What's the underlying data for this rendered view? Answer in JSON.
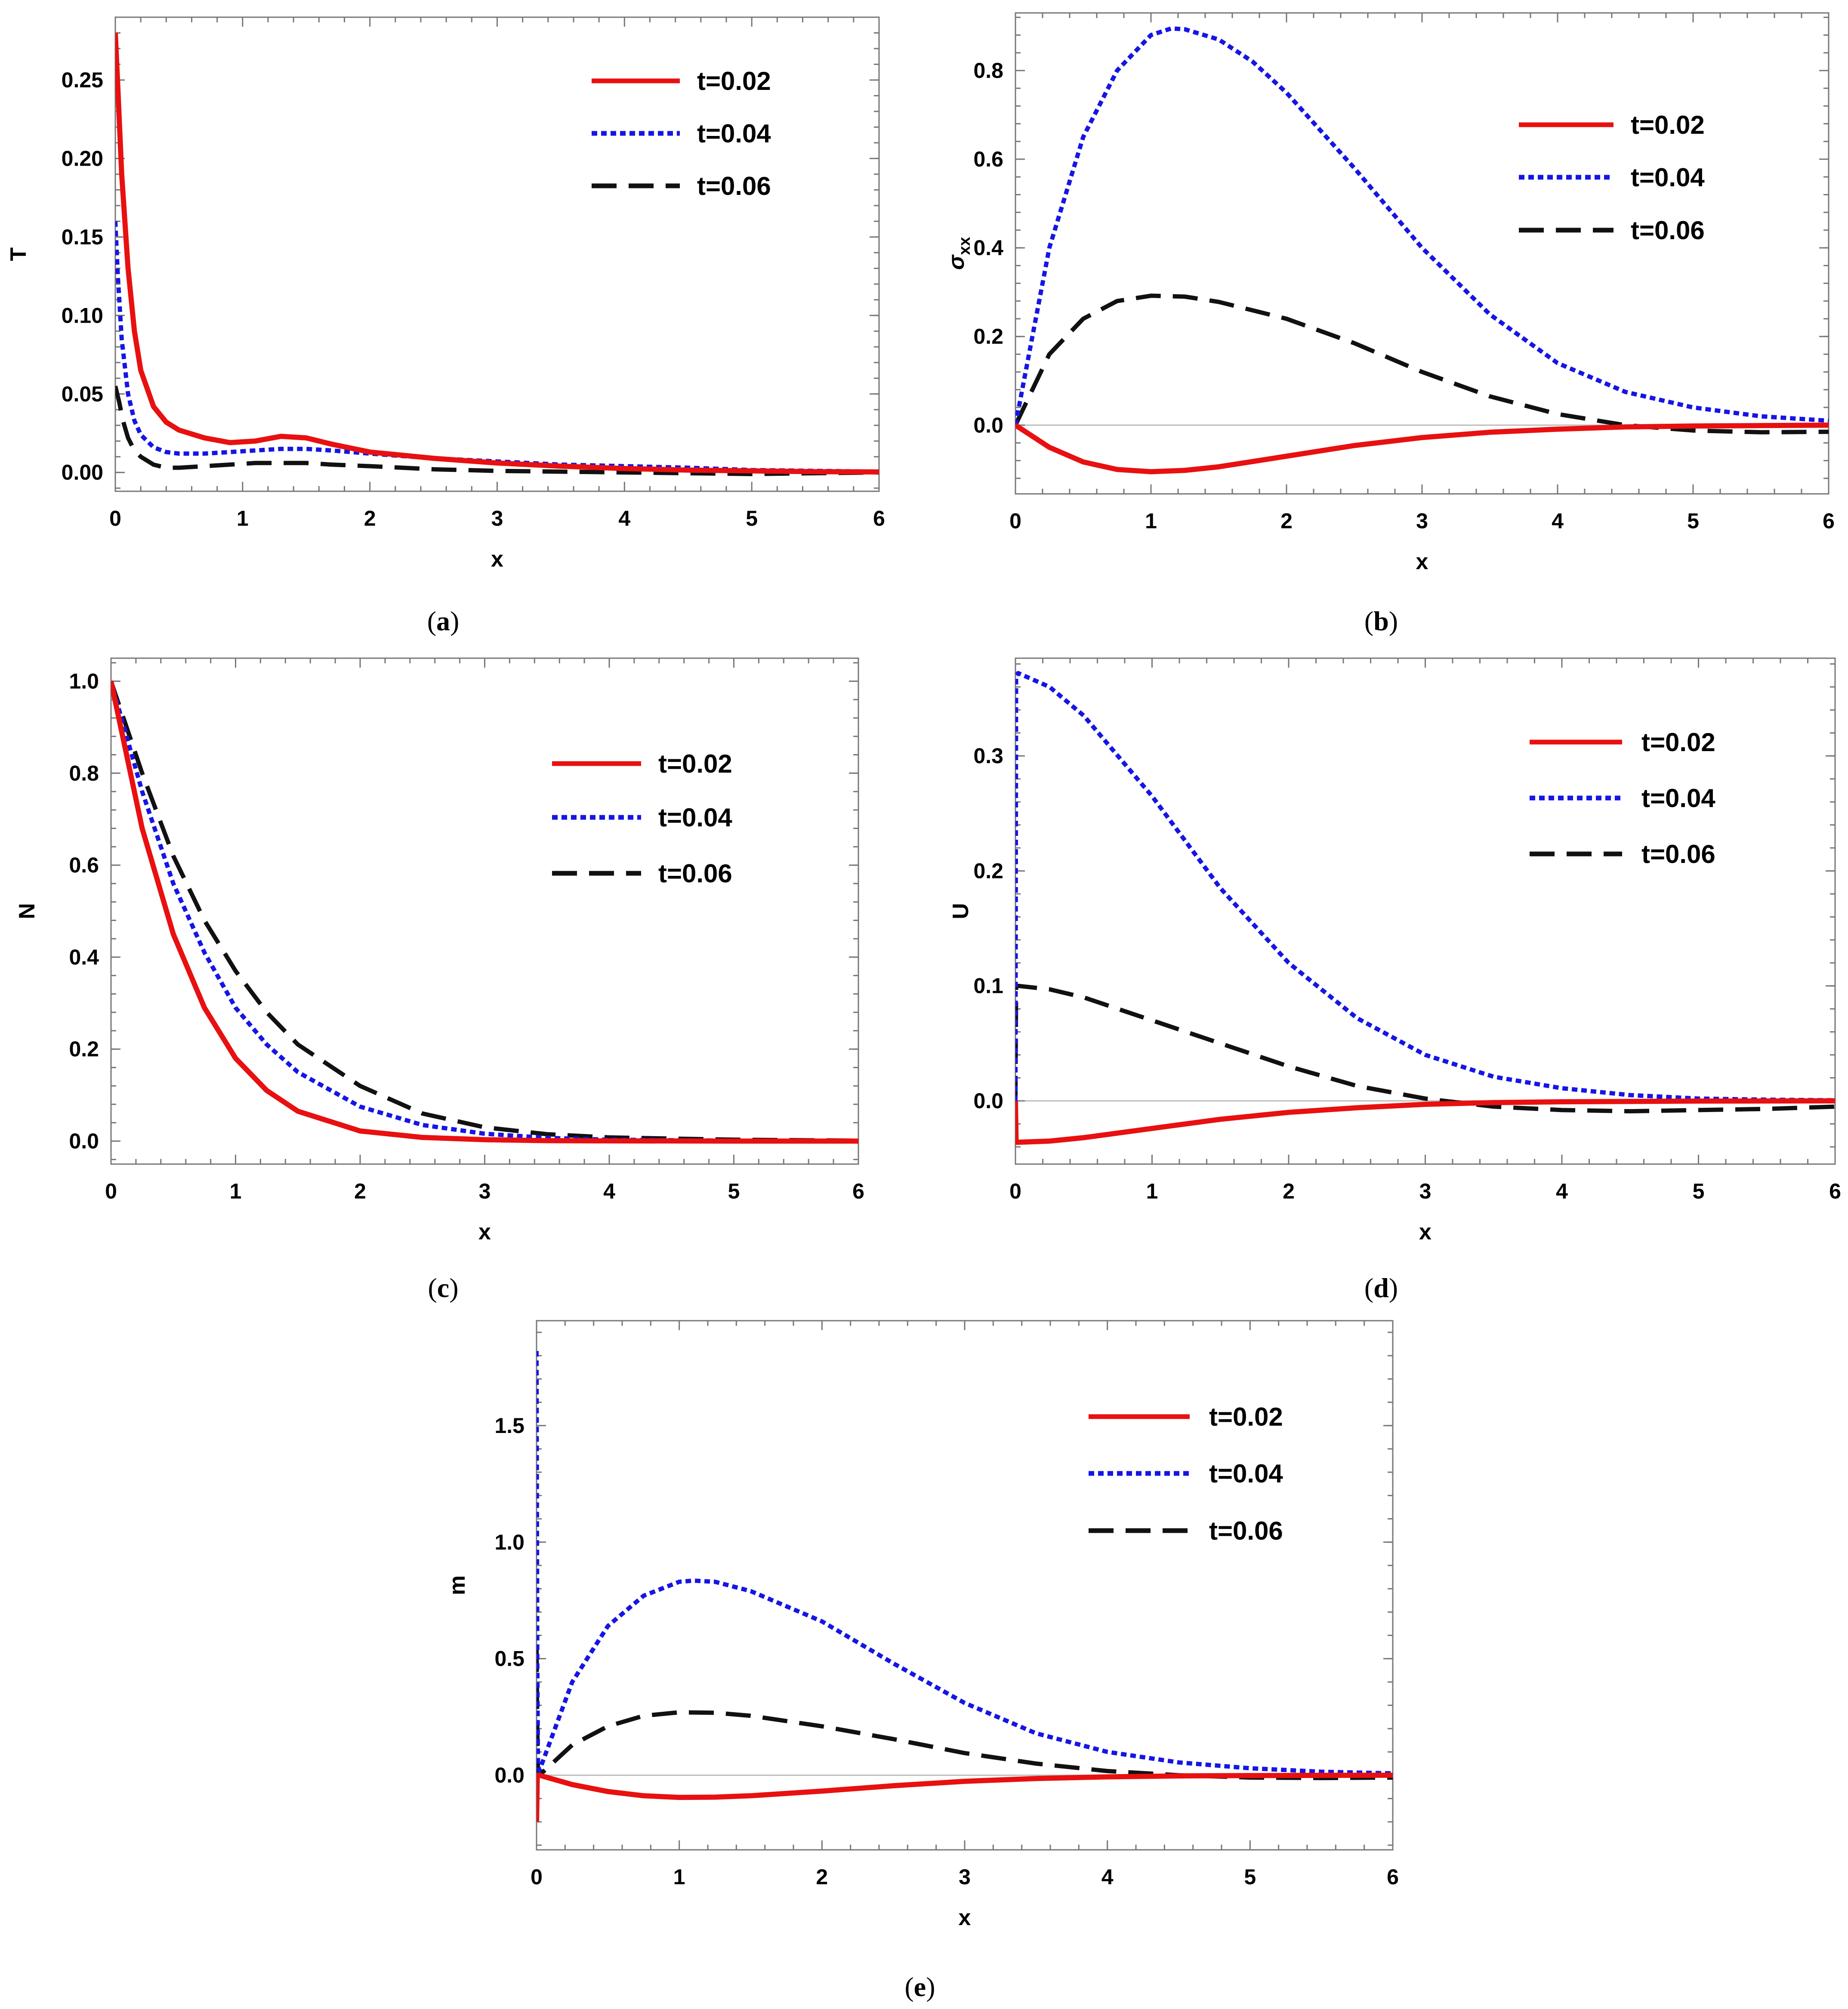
{
  "figure": {
    "legend_labels": [
      "t=0.02",
      "t=0.04",
      "t=0.06"
    ],
    "series_styles": [
      {
        "name": "t=0.02",
        "color": "#e81010",
        "dash": "solid"
      },
      {
        "name": "t=0.04",
        "color": "#1515e6",
        "dash": "dotted"
      },
      {
        "name": "t=0.06",
        "color": "#111111",
        "dash": "dashed"
      }
    ]
  },
  "chart_data": [
    {
      "id": "a",
      "caption": "a",
      "type": "line",
      "ylabel": "T",
      "xlabel": "x",
      "xlim": [
        0,
        6
      ],
      "ylim": [
        -0.012,
        0.29
      ],
      "xticks": [
        0,
        1,
        2,
        3,
        4,
        5,
        6
      ],
      "yticks": [
        "0.00",
        "0.05",
        "0.10",
        "0.15",
        "0.20",
        "0.25"
      ],
      "legend_position": "top-right",
      "zero_line": false,
      "series": [
        {
          "name": "t=0.02",
          "x": [
            0,
            0.02,
            0.05,
            0.1,
            0.15,
            0.2,
            0.3,
            0.4,
            0.5,
            0.7,
            0.9,
            1.1,
            1.3,
            1.5,
            1.7,
            2.0,
            2.5,
            3.0,
            3.5,
            4.0,
            4.5,
            5.0,
            5.5,
            6.0
          ],
          "y": [
            0.28,
            0.245,
            0.19,
            0.13,
            0.09,
            0.065,
            0.042,
            0.032,
            0.027,
            0.022,
            0.019,
            0.02,
            0.023,
            0.022,
            0.018,
            0.013,
            0.009,
            0.006,
            0.004,
            0.0025,
            0.0015,
            0.001,
            0.0005,
            0.0003
          ]
        },
        {
          "name": "t=0.04",
          "x": [
            0,
            0.02,
            0.05,
            0.1,
            0.15,
            0.2,
            0.3,
            0.4,
            0.5,
            0.7,
            0.9,
            1.1,
            1.3,
            1.5,
            1.7,
            2.0,
            2.5,
            3.0,
            3.5,
            4.0,
            4.5,
            5.0,
            5.5,
            6.0
          ],
          "y": [
            0.16,
            0.125,
            0.085,
            0.05,
            0.033,
            0.024,
            0.016,
            0.013,
            0.012,
            0.012,
            0.013,
            0.014,
            0.015,
            0.015,
            0.014,
            0.012,
            0.009,
            0.007,
            0.005,
            0.004,
            0.003,
            0.0015,
            0.001,
            0.0005
          ]
        },
        {
          "name": "t=0.06",
          "x": [
            0,
            0.03,
            0.06,
            0.1,
            0.15,
            0.2,
            0.3,
            0.4,
            0.5,
            0.7,
            0.9,
            1.1,
            1.3,
            1.5,
            1.7,
            2.0,
            2.5,
            3.0,
            3.5,
            4.0,
            4.5,
            5.0,
            5.5,
            6.0
          ],
          "y": [
            0.055,
            0.045,
            0.033,
            0.022,
            0.014,
            0.01,
            0.005,
            0.003,
            0.003,
            0.004,
            0.005,
            0.006,
            0.006,
            0.006,
            0.005,
            0.004,
            0.002,
            0.001,
            0.0005,
            0.0,
            -0.0005,
            -0.001,
            -0.0005,
            0.0
          ]
        }
      ]
    },
    {
      "id": "b",
      "caption": "b",
      "type": "line",
      "ylabel": "σxx",
      "ylabel_main": "σ",
      "ylabel_sub": "xx",
      "xlabel": "x",
      "xlim": [
        0,
        6
      ],
      "ylim": [
        -0.155,
        0.93
      ],
      "xticks": [
        0,
        1,
        2,
        3,
        4,
        5,
        6
      ],
      "yticks": [
        "0.0",
        "0.2",
        "0.4",
        "0.6",
        "0.8"
      ],
      "legend_position": "top-right",
      "zero_line": true,
      "series": [
        {
          "name": "t=0.02",
          "x": [
            0,
            0.25,
            0.5,
            0.75,
            1.0,
            1.25,
            1.5,
            1.75,
            2.0,
            2.5,
            3.0,
            3.5,
            4.0,
            4.5,
            5.0,
            5.5,
            6.0
          ],
          "y": [
            0,
            -0.05,
            -0.083,
            -0.1,
            -0.105,
            -0.102,
            -0.094,
            -0.082,
            -0.07,
            -0.046,
            -0.028,
            -0.016,
            -0.009,
            -0.004,
            -0.002,
            -0.001,
            0
          ]
        },
        {
          "name": "t=0.04",
          "x": [
            0,
            0.25,
            0.5,
            0.75,
            1.0,
            1.15,
            1.25,
            1.5,
            1.75,
            2.0,
            2.5,
            3.0,
            3.5,
            4.0,
            4.5,
            5.0,
            5.5,
            6.0
          ],
          "y": [
            0,
            0.4,
            0.65,
            0.8,
            0.88,
            0.895,
            0.893,
            0.87,
            0.82,
            0.75,
            0.58,
            0.4,
            0.25,
            0.14,
            0.075,
            0.04,
            0.02,
            0.01
          ]
        },
        {
          "name": "t=0.06",
          "x": [
            0,
            0.25,
            0.5,
            0.75,
            1.0,
            1.25,
            1.5,
            2.0,
            2.5,
            3.0,
            3.5,
            4.0,
            4.5,
            5.0,
            5.5,
            6.0
          ],
          "y": [
            0,
            0.16,
            0.24,
            0.28,
            0.292,
            0.29,
            0.278,
            0.24,
            0.185,
            0.12,
            0.065,
            0.025,
            0.0,
            -0.012,
            -0.016,
            -0.015
          ]
        }
      ]
    },
    {
      "id": "c",
      "caption": "c",
      "type": "line",
      "ylabel": "N",
      "xlabel": "x",
      "xlim": [
        0,
        6
      ],
      "ylim": [
        -0.05,
        1.05
      ],
      "xticks": [
        0,
        1,
        2,
        3,
        4,
        5,
        6
      ],
      "yticks": [
        "0.0",
        "0.2",
        "0.4",
        "0.6",
        "0.8",
        "1.0"
      ],
      "legend_position": "top-right",
      "zero_line": false,
      "series": [
        {
          "name": "t=0.02",
          "x": [
            0,
            0.25,
            0.5,
            0.75,
            1.0,
            1.25,
            1.5,
            2.0,
            2.5,
            3.0,
            3.5,
            4.0,
            5.0,
            6.0
          ],
          "y": [
            1.0,
            0.68,
            0.45,
            0.29,
            0.18,
            0.11,
            0.065,
            0.022,
            0.008,
            0.003,
            0.001,
            0.0005,
            0,
            0
          ]
        },
        {
          "name": "t=0.04",
          "x": [
            0,
            0.25,
            0.5,
            0.75,
            1.0,
            1.25,
            1.5,
            2.0,
            2.5,
            3.0,
            3.5,
            4.0,
            5.0,
            6.0
          ],
          "y": [
            1.0,
            0.76,
            0.56,
            0.41,
            0.29,
            0.21,
            0.15,
            0.075,
            0.035,
            0.016,
            0.007,
            0.003,
            0.001,
            0
          ]
        },
        {
          "name": "t=0.06",
          "x": [
            0,
            0.25,
            0.5,
            0.75,
            1.0,
            1.25,
            1.5,
            2.0,
            2.5,
            3.0,
            3.5,
            4.0,
            5.0,
            6.0
          ],
          "y": [
            1.0,
            0.8,
            0.62,
            0.48,
            0.37,
            0.28,
            0.21,
            0.12,
            0.06,
            0.03,
            0.015,
            0.008,
            0.003,
            0.001
          ]
        }
      ]
    },
    {
      "id": "d",
      "caption": "d",
      "type": "line",
      "ylabel": "U",
      "xlabel": "x",
      "xlim": [
        0,
        6
      ],
      "ylim": [
        -0.055,
        0.385
      ],
      "xticks": [
        0,
        1,
        2,
        3,
        4,
        5,
        6
      ],
      "yticks": [
        "0.0",
        "0.1",
        "0.2",
        "0.3"
      ],
      "legend_position": "top-right",
      "zero_line": true,
      "series": [
        {
          "name": "t=0.02",
          "x": [
            0,
            0.005,
            0.02,
            0.25,
            0.5,
            1.0,
            1.5,
            2.0,
            2.5,
            3.0,
            3.5,
            4.0,
            5.0,
            6.0
          ],
          "y": [
            0,
            -0.036,
            -0.036,
            -0.035,
            -0.032,
            -0.024,
            -0.016,
            -0.01,
            -0.006,
            -0.003,
            -0.0015,
            -0.0008,
            -0.0002,
            0
          ]
        },
        {
          "name": "t=0.04",
          "x": [
            0,
            0.005,
            0.02,
            0.25,
            0.5,
            0.75,
            1.0,
            1.25,
            1.5,
            2.0,
            2.5,
            3.0,
            3.5,
            4.0,
            4.5,
            5.0,
            5.5,
            6.0
          ],
          "y": [
            0,
            0.37,
            0.372,
            0.36,
            0.335,
            0.3,
            0.265,
            0.225,
            0.185,
            0.12,
            0.072,
            0.04,
            0.021,
            0.011,
            0.005,
            0.002,
            0.001,
            0.0005
          ]
        },
        {
          "name": "t=0.06",
          "x": [
            0,
            0.005,
            0.02,
            0.25,
            0.5,
            0.75,
            1.0,
            1.5,
            2.0,
            2.5,
            3.0,
            3.5,
            4.0,
            4.5,
            5.0,
            5.5,
            6.0
          ],
          "y": [
            0,
            0.1,
            0.1,
            0.097,
            0.09,
            0.08,
            0.07,
            0.05,
            0.03,
            0.013,
            0.002,
            -0.005,
            -0.008,
            -0.009,
            -0.008,
            -0.007,
            -0.005
          ]
        }
      ]
    },
    {
      "id": "e",
      "caption": "e",
      "type": "line",
      "ylabel": "m",
      "xlabel": "x",
      "xlim": [
        0,
        6
      ],
      "ylim": [
        -0.32,
        1.95
      ],
      "xticks": [
        0,
        1,
        2,
        3,
        4,
        5,
        6
      ],
      "yticks": [
        "0.0",
        "0.5",
        "1.0",
        "1.5"
      ],
      "legend_position": "top-right",
      "zero_line": true,
      "series": [
        {
          "name": "t=0.02",
          "x": [
            0,
            0.005,
            0.02,
            0.25,
            0.5,
            0.75,
            1.0,
            1.25,
            1.5,
            2.0,
            2.5,
            3.0,
            3.5,
            4.0,
            4.5,
            5.0,
            5.5,
            6.0
          ],
          "y": [
            -0.2,
            0,
            0,
            -0.04,
            -0.07,
            -0.088,
            -0.095,
            -0.094,
            -0.088,
            -0.068,
            -0.045,
            -0.026,
            -0.014,
            -0.007,
            -0.003,
            -0.0015,
            -0.0005,
            0
          ]
        },
        {
          "name": "t=0.04",
          "x": [
            0,
            0.005,
            0.01,
            0.02,
            0.25,
            0.5,
            0.75,
            1.0,
            1.1,
            1.25,
            1.5,
            2.0,
            2.5,
            3.0,
            3.5,
            4.0,
            4.5,
            5.0,
            5.5,
            6.0
          ],
          "y": [
            1.82,
            0.5,
            0.05,
            0.02,
            0.4,
            0.64,
            0.77,
            0.83,
            0.835,
            0.83,
            0.79,
            0.66,
            0.48,
            0.31,
            0.18,
            0.1,
            0.055,
            0.03,
            0.015,
            0.008
          ]
        },
        {
          "name": "t=0.06",
          "x": [
            0,
            0.005,
            0.01,
            0.02,
            0.25,
            0.5,
            0.75,
            1.0,
            1.25,
            1.5,
            2.0,
            2.5,
            3.0,
            3.5,
            4.0,
            4.5,
            5.0,
            5.5,
            6.0
          ],
          "y": [
            0.55,
            0.2,
            0.02,
            0.0,
            0.13,
            0.21,
            0.255,
            0.27,
            0.268,
            0.255,
            0.21,
            0.155,
            0.095,
            0.05,
            0.018,
            0.0,
            -0.01,
            -0.012,
            -0.01
          ]
        }
      ]
    }
  ]
}
